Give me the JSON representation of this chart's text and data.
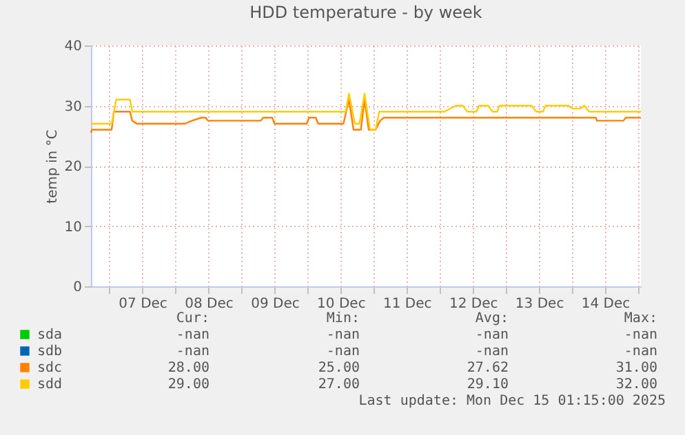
{
  "chart_data": {
    "type": "line",
    "title": "HDD temperature - by week",
    "ylabel": "temp in °C",
    "xlim": [
      "2025-12-06T17:20",
      "2025-12-15T01:00"
    ],
    "xticks": [
      {
        "value": "2025-12-07T00:00",
        "label": null
      },
      {
        "value": "2025-12-07T12:00",
        "label": "07 Dec"
      },
      {
        "value": "2025-12-08T00:00",
        "label": null
      },
      {
        "value": "2025-12-08T12:00",
        "label": "08 Dec"
      },
      {
        "value": "2025-12-09T00:00",
        "label": null
      },
      {
        "value": "2025-12-09T12:00",
        "label": "09 Dec"
      },
      {
        "value": "2025-12-10T00:00",
        "label": null
      },
      {
        "value": "2025-12-10T12:00",
        "label": "10 Dec"
      },
      {
        "value": "2025-12-11T00:00",
        "label": null
      },
      {
        "value": "2025-12-11T12:00",
        "label": "11 Dec"
      },
      {
        "value": "2025-12-12T00:00",
        "label": null
      },
      {
        "value": "2025-12-12T12:00",
        "label": "12 Dec"
      },
      {
        "value": "2025-12-13T00:00",
        "label": null
      },
      {
        "value": "2025-12-13T12:00",
        "label": "13 Dec"
      },
      {
        "value": "2025-12-14T00:00",
        "label": null
      },
      {
        "value": "2025-12-14T12:00",
        "label": "14 Dec"
      },
      {
        "value": "2025-12-15T00:00",
        "label": null
      }
    ],
    "ylim": [
      0,
      40
    ],
    "yticks": [
      0,
      10,
      20,
      30,
      40
    ],
    "grid": true,
    "legend": "bottom left",
    "series": [
      {
        "name": "sda",
        "color": "#00cc00"
      },
      {
        "name": "sdb",
        "color": "#0066b3"
      },
      {
        "name": "sdc",
        "color": "#ff8000",
        "x": [
          "2025-12-06T17:20",
          "2025-12-06T17:40",
          "2025-12-07T00:50",
          "2025-12-07T01:40",
          "2025-12-07T07:30",
          "2025-12-07T08:20",
          "2025-12-07T10:00",
          "2025-12-08T03:30",
          "2025-12-08T06:00",
          "2025-12-08T09:20",
          "2025-12-08T11:00",
          "2025-12-08T11:50",
          "2025-12-09T07:00",
          "2025-12-09T07:50",
          "2025-12-09T11:10",
          "2025-12-09T12:00",
          "2025-12-09T23:40",
          "2025-12-10T00:30",
          "2025-12-10T03:00",
          "2025-12-10T03:50",
          "2025-12-10T13:00",
          "2025-12-10T15:00",
          "2025-12-10T16:40",
          "2025-12-10T19:20",
          "2025-12-10T20:40",
          "2025-12-10T22:10",
          "2025-12-11T00:40",
          "2025-12-11T02:20",
          "2025-12-11T03:40",
          "2025-12-14T08:40",
          "2025-12-14T09:00",
          "2025-12-14T18:40",
          "2025-12-14T19:30",
          "2025-12-15T01:00"
        ],
        "values": [
          25.5,
          26,
          26,
          29,
          29,
          27.5,
          27,
          27,
          27.5,
          28,
          28,
          27.5,
          27.5,
          28,
          28,
          27,
          27,
          28,
          28,
          27,
          27,
          31,
          26,
          26,
          31,
          26,
          26,
          27.5,
          28,
          28,
          27.5,
          27.5,
          28,
          28
        ]
      },
      {
        "name": "sdd",
        "color": "#ffcc00",
        "x": [
          "2025-12-06T17:20",
          "2025-12-07T00:50",
          "2025-12-07T02:30",
          "2025-12-07T07:30",
          "2025-12-07T08:20",
          "2025-12-10T13:50",
          "2025-12-10T15:00",
          "2025-12-10T17:10",
          "2025-12-10T18:50",
          "2025-12-10T20:40",
          "2025-12-10T22:40",
          "2025-12-11T00:40",
          "2025-12-11T02:00",
          "2025-12-12T01:40",
          "2025-12-12T05:50",
          "2025-12-12T08:20",
          "2025-12-12T10:00",
          "2025-12-12T13:20",
          "2025-12-12T14:10",
          "2025-12-12T17:30",
          "2025-12-12T19:10",
          "2025-12-12T20:50",
          "2025-12-12T21:40",
          "2025-12-13T09:20",
          "2025-12-13T11:00",
          "2025-12-13T13:30",
          "2025-12-13T14:20",
          "2025-12-13T22:40",
          "2025-12-14T00:20",
          "2025-12-14T02:50",
          "2025-12-14T04:30",
          "2025-12-14T06:10",
          "2025-12-15T01:00"
        ],
        "values": [
          27,
          27,
          31,
          31,
          29,
          29,
          32,
          27,
          27,
          32,
          26,
          26,
          29,
          29,
          30,
          30,
          29,
          29,
          30,
          30,
          29,
          29,
          30,
          30,
          29,
          29,
          30,
          30,
          29.5,
          29.5,
          30,
          29,
          29
        ]
      }
    ],
    "annotations": [
      "Cur:",
      "Min:",
      "Avg:",
      "Max:",
      "-nan",
      "-nan",
      "-nan",
      "-nan",
      "-nan",
      "-nan",
      "-nan",
      "-nan",
      "28.00",
      "25.00",
      "27.62",
      "31.00",
      "29.00",
      "27.00",
      "29.10",
      "32.00",
      "Last update: Mon Dec 15 01:15:00 2025"
    ]
  }
}
